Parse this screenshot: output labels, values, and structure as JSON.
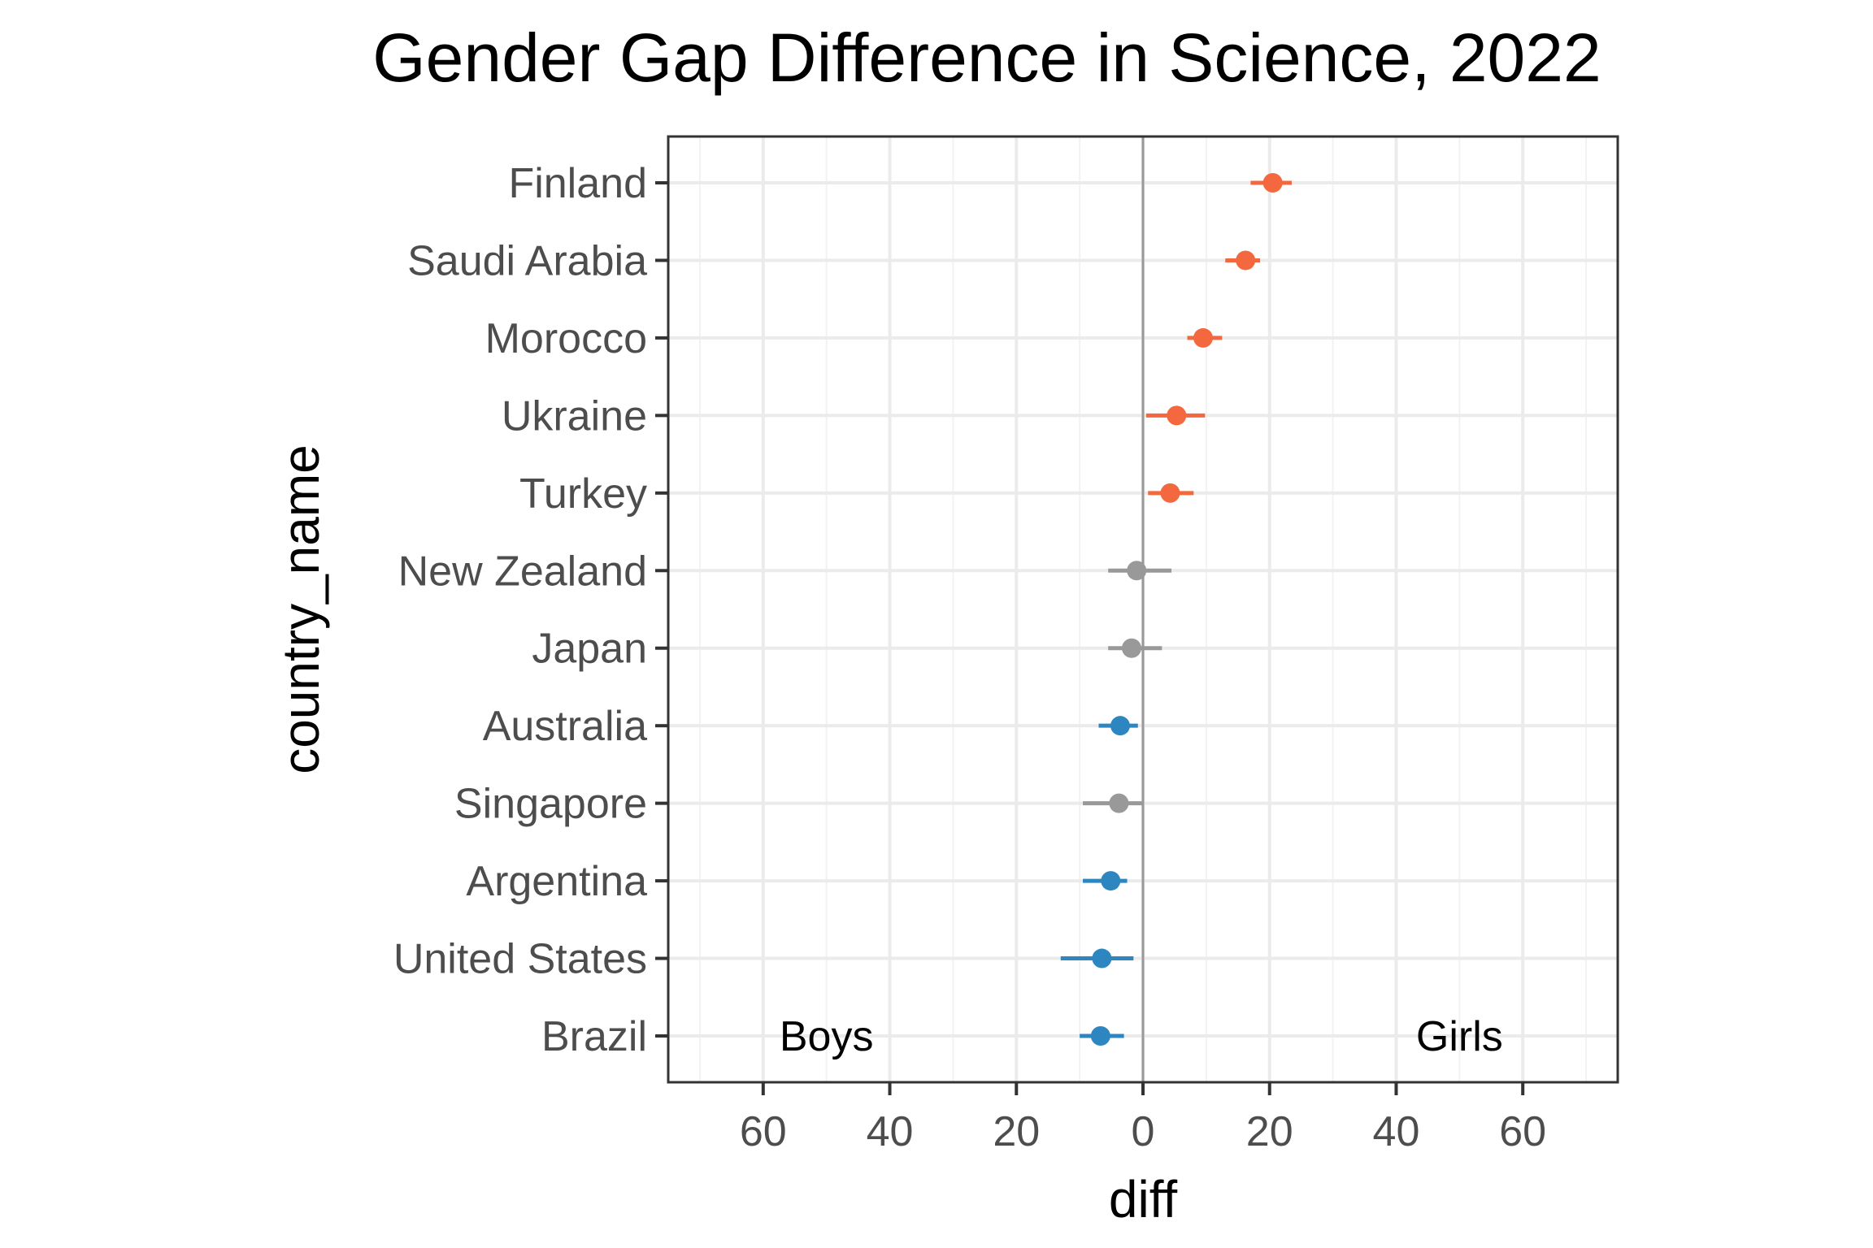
{
  "chart_data": {
    "type": "dot-errorbar",
    "title": "Gender Gap Difference in Science, 2022",
    "xlabel": "diff",
    "ylabel": "country_name",
    "xlim": [
      -75,
      75
    ],
    "x_ticks": [
      -60,
      -40,
      -20,
      0,
      20,
      40,
      60
    ],
    "x_tick_labels": [
      "60",
      "40",
      "20",
      "0",
      "20",
      "40",
      "60"
    ],
    "grid": true,
    "annotations": [
      {
        "text": "Boys",
        "x": -50
      },
      {
        "text": "Girls",
        "x": 50
      }
    ],
    "colors": {
      "girls_significant": "#f4683f",
      "not_significant": "#999999",
      "boys_significant": "#2e86c1"
    },
    "points": [
      {
        "country": "Finland",
        "diff": 20.5,
        "low": 17.0,
        "high": 23.5,
        "group": "girls_significant"
      },
      {
        "country": "Saudi Arabia",
        "diff": 16.2,
        "low": 13.0,
        "high": 18.5,
        "group": "girls_significant"
      },
      {
        "country": "Morocco",
        "diff": 9.5,
        "low": 7.0,
        "high": 12.5,
        "group": "girls_significant"
      },
      {
        "country": "Ukraine",
        "diff": 5.3,
        "low": 0.5,
        "high": 9.8,
        "group": "girls_significant"
      },
      {
        "country": "Turkey",
        "diff": 4.3,
        "low": 0.8,
        "high": 8.0,
        "group": "girls_significant"
      },
      {
        "country": "New Zealand",
        "diff": -1.0,
        "low": -5.5,
        "high": 4.5,
        "group": "not_significant"
      },
      {
        "country": "Japan",
        "diff": -1.8,
        "low": -5.5,
        "high": 3.0,
        "group": "not_significant"
      },
      {
        "country": "Australia",
        "diff": -3.6,
        "low": -7.0,
        "high": -0.8,
        "group": "boys_significant"
      },
      {
        "country": "Singapore",
        "diff": -3.8,
        "low": -9.5,
        "high": 0.0,
        "group": "not_significant"
      },
      {
        "country": "Argentina",
        "diff": -5.1,
        "low": -9.5,
        "high": -2.5,
        "group": "boys_significant"
      },
      {
        "country": "United States",
        "diff": -6.5,
        "low": -13.0,
        "high": -1.5,
        "group": "boys_significant"
      },
      {
        "country": "Brazil",
        "diff": -6.7,
        "low": -10.0,
        "high": -3.0,
        "group": "boys_significant"
      }
    ]
  }
}
